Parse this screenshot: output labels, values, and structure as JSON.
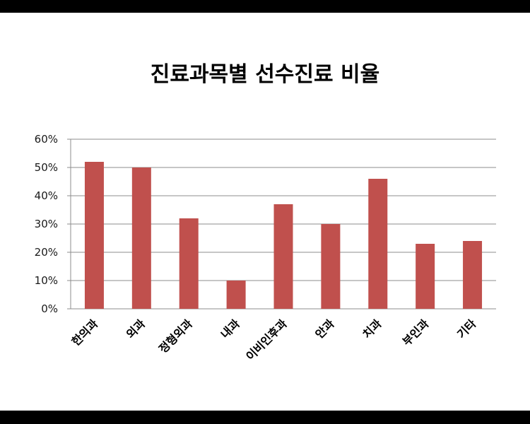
{
  "chart_data": {
    "type": "bar",
    "title": "진료과목별 선수진료 비율",
    "categories": [
      "한의과",
      "외과",
      "정형외과",
      "내과",
      "이비인후과",
      "안과",
      "치과",
      "부인과",
      "기타"
    ],
    "values": [
      52,
      50,
      32,
      10,
      37,
      30,
      46,
      23,
      24
    ],
    "y_ticks": [
      "0%",
      "10%",
      "20%",
      "30%",
      "40%",
      "50%",
      "60%"
    ],
    "ylim": [
      0,
      60
    ],
    "grid": true,
    "legend": "none",
    "bar_color": "#c0504d",
    "grid_color": "#8c8c8c"
  }
}
